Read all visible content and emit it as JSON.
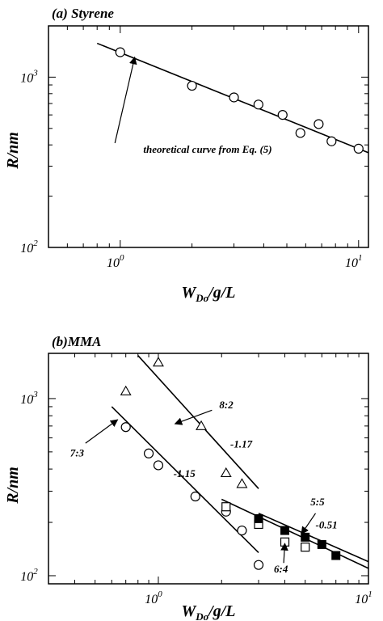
{
  "chart_data": [
    {
      "type": "scatter",
      "panel_label": "(a) Styrene",
      "ylabel": "R/nm",
      "xlabel": {
        "main": "W",
        "sub": "Do",
        "rest": "/g/L"
      },
      "x_scale": "log",
      "y_scale": "log",
      "xlim": [
        0.5,
        11
      ],
      "ylim": [
        100,
        2000
      ],
      "x_ticks": [
        {
          "v": 1,
          "base": "10",
          "exp": "0"
        },
        {
          "v": 10,
          "base": "10",
          "exp": "1"
        }
      ],
      "y_ticks": [
        {
          "v": 100,
          "base": "10",
          "exp": "2"
        },
        {
          "v": 1000,
          "base": "10",
          "exp": "3"
        }
      ],
      "series": [
        {
          "marker": "circle-open",
          "x": [
            1.0,
            2.0,
            3.0,
            3.8,
            4.8,
            5.7,
            6.8,
            7.7,
            10.0
          ],
          "y": [
            1400,
            890,
            760,
            690,
            600,
            470,
            530,
            420,
            380
          ]
        }
      ],
      "lines": [
        {
          "x": [
            0.8,
            11.0
          ],
          "y": [
            1580,
            360
          ]
        }
      ],
      "annotations": [
        {
          "text": "theoretical curve from Eq. (5)",
          "x": 1.25,
          "y": 360,
          "arrow_to": [
            1.15,
            1310
          ],
          "arrow_from": [
            0.95,
            410
          ]
        }
      ]
    },
    {
      "type": "scatter",
      "panel_label": "(b)MMA",
      "ylabel": "R/nm",
      "xlabel": {
        "main": "W",
        "sub": "Do",
        "rest": "/g/L"
      },
      "x_scale": "log",
      "y_scale": "log",
      "xlim": [
        0.3,
        10
      ],
      "ylim": [
        90,
        1800
      ],
      "x_ticks": [
        {
          "v": 1,
          "base": "10",
          "exp": "0"
        },
        {
          "v": 10,
          "base": "10",
          "exp": "1"
        }
      ],
      "y_ticks": [
        {
          "v": 100,
          "base": "10",
          "exp": "2"
        },
        {
          "v": 1000,
          "base": "10",
          "exp": "3"
        }
      ],
      "series": [
        {
          "name": "8:2",
          "marker": "triangle-open",
          "x": [
            0.7,
            1.0,
            1.6,
            2.1,
            2.5
          ],
          "y": [
            1100,
            1600,
            700,
            380,
            330
          ]
        },
        {
          "name": "7:3",
          "marker": "circle-open",
          "x": [
            0.7,
            0.9,
            1.0,
            1.5,
            2.1,
            2.5,
            3.0
          ],
          "y": [
            690,
            490,
            420,
            280,
            230,
            180,
            115
          ]
        },
        {
          "name": "6:4",
          "marker": "square-open",
          "x": [
            2.1,
            3.0,
            4.0,
            5.0
          ],
          "y": [
            245,
            195,
            155,
            145
          ]
        },
        {
          "name": "5:5",
          "marker": "square-filled",
          "x": [
            3.0,
            4.0,
            5.0,
            6.0,
            7.0
          ],
          "y": [
            210,
            180,
            165,
            150,
            130
          ]
        }
      ],
      "lines": [
        {
          "x": [
            0.8,
            3.0
          ],
          "y": [
            1750,
            310
          ]
        },
        {
          "x": [
            0.6,
            3.0
          ],
          "y": [
            900,
            135
          ]
        },
        {
          "x": [
            2.0,
            10.0
          ],
          "y": [
            270,
            110
          ]
        },
        {
          "x": [
            3.0,
            10.0
          ],
          "y": [
            225,
            120
          ]
        }
      ],
      "annotations": [
        {
          "text": "8:2",
          "x": 1.95,
          "y": 880,
          "arrow_to": [
            1.2,
            720
          ],
          "arrow_from": [
            1.8,
            860
          ]
        },
        {
          "text": "-1.17",
          "x": 2.2,
          "y": 530
        },
        {
          "text": "7:3",
          "x": 0.38,
          "y": 470,
          "arrow_to": [
            0.64,
            760
          ],
          "arrow_from": [
            0.45,
            560
          ]
        },
        {
          "text": "-1.15",
          "x": 1.18,
          "y": 360
        },
        {
          "text": "5:5",
          "x": 5.3,
          "y": 250,
          "arrow_to": [
            4.8,
            172
          ],
          "arrow_from": [
            5.6,
            225
          ]
        },
        {
          "text": "-0.51",
          "x": 5.6,
          "y": 185
        },
        {
          "text": "6:4",
          "x": 3.55,
          "y": 104,
          "arrow_to": [
            4.0,
            152
          ],
          "arrow_from": [
            3.95,
            118
          ]
        }
      ]
    }
  ]
}
